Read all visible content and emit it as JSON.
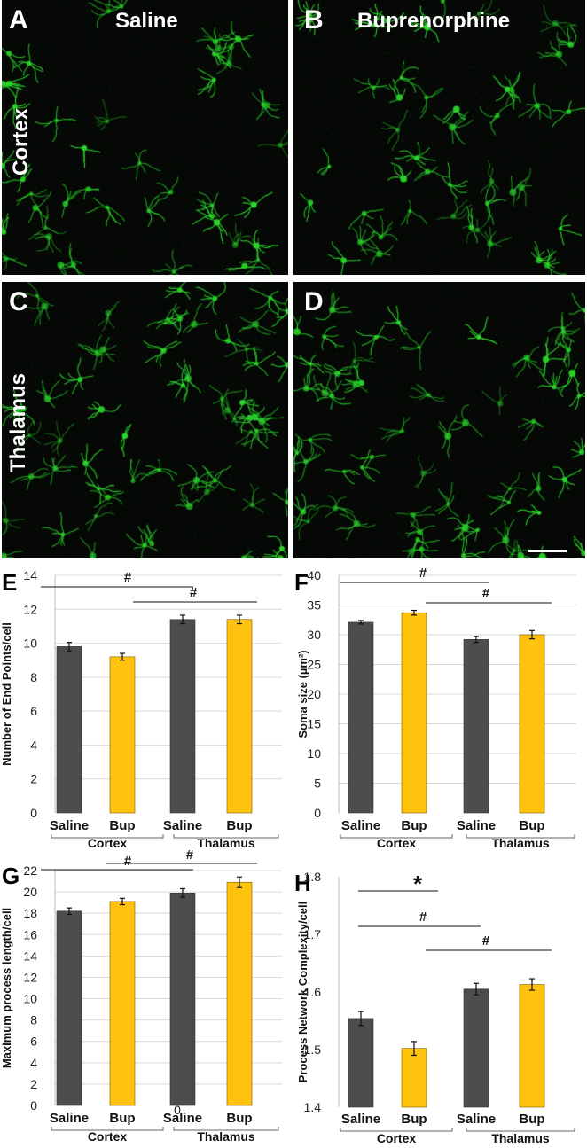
{
  "images": {
    "col_titles": [
      "Saline",
      "Buprenorphine"
    ],
    "row_labels": [
      "Cortex",
      "Thalamus"
    ],
    "panels": [
      "A",
      "B",
      "C",
      "D"
    ],
    "colors": {
      "background": "#050805",
      "cells": "#2bd42b"
    }
  },
  "colors": {
    "saline": "#4d4d4d",
    "bup": "#ffc20e",
    "axis_text": "#222222",
    "grid": "#d9d9d9"
  },
  "chart_data": [
    {
      "panel": "E",
      "type": "bar",
      "ylabel": "Number of End Points/cell",
      "categories": [
        "Saline",
        "Bup",
        "Saline",
        "Bup"
      ],
      "groups": [
        "Cortex",
        "Thalamus"
      ],
      "values": [
        9.8,
        9.2,
        11.4,
        11.4
      ],
      "errors": [
        0.25,
        0.2,
        0.25,
        0.25
      ],
      "ylim": [
        0,
        14
      ],
      "yticks": [
        "0",
        "2",
        "4",
        "6",
        "8",
        "10",
        "12",
        "14"
      ],
      "grid": true,
      "annotations": [
        "#",
        "#"
      ]
    },
    {
      "panel": "F",
      "type": "bar",
      "ylabel": "Soma size (µm²)",
      "categories": [
        "Saline",
        "Bup",
        "Saline",
        "Bup"
      ],
      "groups": [
        "Cortex",
        "Thalamus"
      ],
      "values": [
        32.1,
        33.7,
        29.2,
        30.0
      ],
      "errors": [
        0.3,
        0.4,
        0.5,
        0.7
      ],
      "ylim": [
        0,
        40
      ],
      "yticks": [
        "0",
        "5",
        "10",
        "15",
        "20",
        "25",
        "30",
        "35",
        "40"
      ],
      "grid": true,
      "annotations": [
        "#",
        "#"
      ]
    },
    {
      "panel": "G",
      "type": "bar",
      "ylabel": "Maximum process length/cell",
      "categories": [
        "Saline",
        "Bup",
        "Saline",
        "Bup"
      ],
      "groups": [
        "Cortex",
        "Thalamus"
      ],
      "values": [
        18.2,
        19.1,
        19.9,
        20.9
      ],
      "errors": [
        0.3,
        0.3,
        0.4,
        0.5
      ],
      "ylim": [
        0,
        22
      ],
      "yticks": [
        "0",
        "2",
        "4",
        "6",
        "8",
        "10",
        "12",
        "14",
        "16",
        "18",
        "20",
        "22"
      ],
      "grid": true,
      "stray_label": "0",
      "annotations": [
        "#",
        "#"
      ]
    },
    {
      "panel": "H",
      "type": "bar",
      "ylabel": "Process Network Complexity/cell",
      "categories": [
        "Saline",
        "Bup",
        "Saline",
        "Bup"
      ],
      "groups": [
        "Cortex",
        "Thalamus"
      ],
      "values": [
        1.554,
        1.502,
        1.605,
        1.613
      ],
      "errors": [
        0.012,
        0.012,
        0.01,
        0.01
      ],
      "ylim": [
        1.4,
        1.8
      ],
      "yticks": [
        "1.4",
        "1.5",
        "1.6",
        "1.7",
        "1.8"
      ],
      "grid": false,
      "annotations": [
        "*",
        "#",
        "#"
      ]
    }
  ]
}
